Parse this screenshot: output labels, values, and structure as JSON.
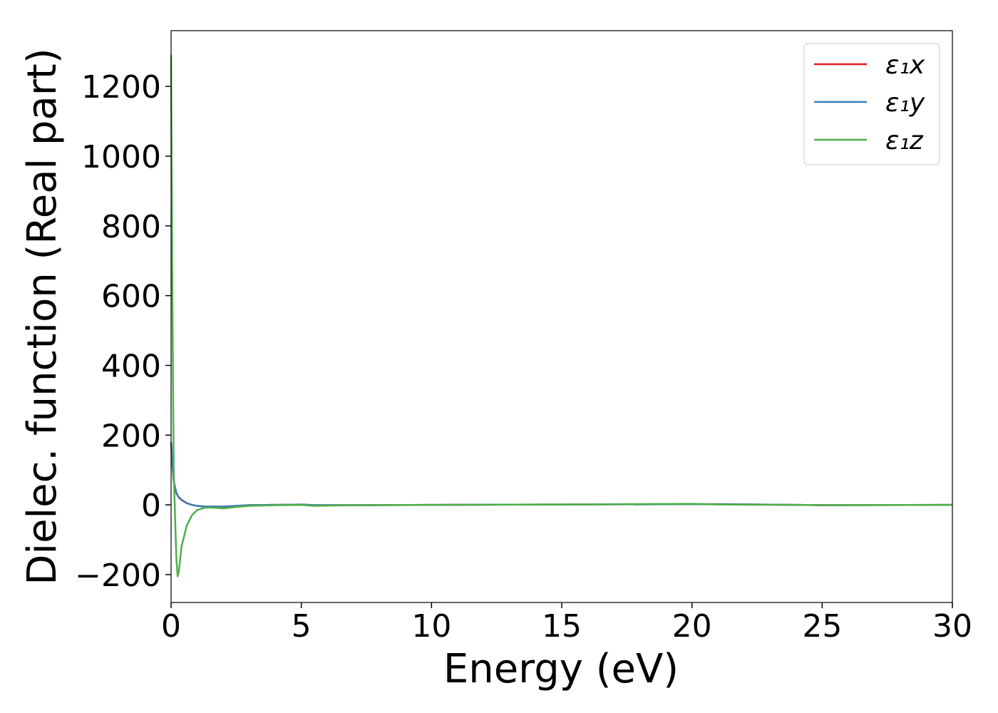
{
  "chart_data": {
    "type": "line",
    "xlabel": "Energy (eV)",
    "ylabel": "Dielec. function (Real part)",
    "x": [
      0,
      0.05,
      0.1,
      0.2,
      0.25,
      0.3,
      0.4,
      0.6,
      0.8,
      1.0,
      1.3,
      1.6,
      2,
      2.5,
      3,
      4,
      5,
      5.5,
      7,
      10,
      15,
      20,
      21,
      24,
      25,
      30
    ],
    "series": [
      {
        "name": "ε₁x",
        "color": "#e41a1c",
        "values": [
          175,
          115,
          68,
          34,
          27,
          21,
          14,
          5,
          0,
          -3,
          -5,
          -5,
          -5,
          -3,
          -1,
          0,
          1,
          -1,
          -1,
          0,
          1,
          2,
          2,
          0,
          -1,
          0
        ]
      },
      {
        "name": "ε₁y",
        "color": "#377eb8",
        "values": [
          180,
          120,
          70,
          35,
          28,
          22,
          15,
          5,
          0,
          -3,
          -5,
          -5,
          -5,
          -3,
          -1,
          0,
          1,
          -1,
          -1,
          0,
          1,
          2,
          2,
          0,
          -1,
          0
        ]
      },
      {
        "name": "ε₁z",
        "color": "#4daf4a",
        "values": [
          1290,
          600,
          100,
          -150,
          -205,
          -190,
          -120,
          -60,
          -30,
          -15,
          -8,
          -8,
          -10,
          -6,
          -3,
          -1,
          0,
          -3,
          -1,
          0,
          1,
          3,
          1,
          0,
          -1,
          0
        ]
      }
    ],
    "xlim": [
      0,
      30
    ],
    "xticks": [
      0,
      5,
      10,
      15,
      20,
      25,
      30
    ],
    "ylim": [
      -280,
      1360
    ],
    "yticks": [
      {
        "value": -200,
        "label": "−200"
      },
      0,
      200,
      400,
      600,
      800,
      1000,
      1200
    ],
    "legend": "upper right",
    "grid": false
  }
}
